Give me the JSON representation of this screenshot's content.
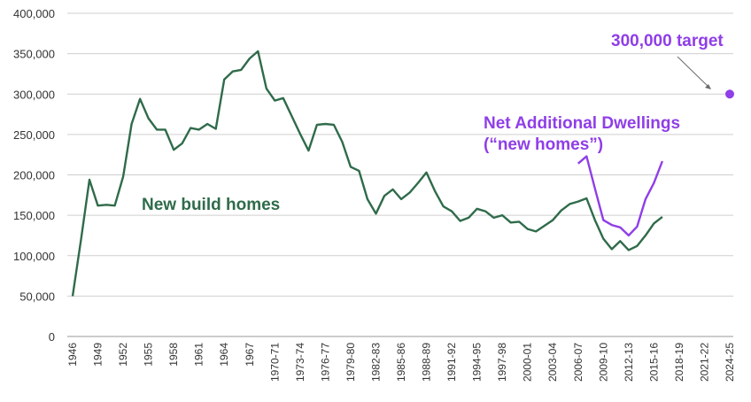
{
  "chart_data": {
    "type": "line",
    "ylim": [
      0,
      400000
    ],
    "yticks": [
      "0",
      "50,000",
      "100,000",
      "150,000",
      "200,000",
      "250,000",
      "300,000",
      "350,000",
      "400,000"
    ],
    "ytick_values": [
      0,
      50000,
      100000,
      150000,
      200000,
      250000,
      300000,
      350000,
      400000
    ],
    "xticks": [
      "1946",
      "1949",
      "1952",
      "1955",
      "1958",
      "1961",
      "1964",
      "1967",
      "1970-71",
      "1973-74",
      "1976-77",
      "1979-80",
      "1982-83",
      "1985-86",
      "1988-89",
      "1991-92",
      "1994-95",
      "1997-98",
      "2000-01",
      "2003-04",
      "2006-07",
      "2009-10",
      "2012-13",
      "2015-16",
      "2018-19",
      "2021-22",
      "2024-25"
    ],
    "grid": true,
    "series": [
      {
        "name": "New build homes",
        "color": "#2f6b4a",
        "x": [
          "1946",
          "1947",
          "1948",
          "1949",
          "1950",
          "1951",
          "1952",
          "1953",
          "1954",
          "1955",
          "1956",
          "1957",
          "1958",
          "1959",
          "1960",
          "1961",
          "1962",
          "1963",
          "1964",
          "1965",
          "1966",
          "1967",
          "1968",
          "1969-70",
          "1970-71",
          "1971-72",
          "1972-73",
          "1973-74",
          "1974-75",
          "1975-76",
          "1976-77",
          "1977-78",
          "1978-79",
          "1979-80",
          "1980-81",
          "1981-82",
          "1982-83",
          "1983-84",
          "1984-85",
          "1985-86",
          "1986-87",
          "1987-88",
          "1988-89",
          "1989-90",
          "1990-91",
          "1991-92",
          "1992-93",
          "1993-94",
          "1994-95",
          "1995-96",
          "1996-97",
          "1997-98",
          "1998-99",
          "1999-00",
          "2000-01",
          "2001-02",
          "2002-03",
          "2003-04",
          "2004-05",
          "2005-06",
          "2006-07",
          "2007-08",
          "2008-09",
          "2009-10",
          "2010-11",
          "2011-12",
          "2012-13",
          "2013-14",
          "2014-15",
          "2015-16",
          "2016-17"
        ],
        "values": [
          50000,
          120000,
          194000,
          162000,
          163000,
          162000,
          198000,
          263000,
          294000,
          270000,
          256000,
          256000,
          231000,
          239000,
          258000,
          256000,
          263000,
          257000,
          318000,
          328000,
          330000,
          344000,
          353000,
          307000,
          292000,
          295000,
          273000,
          251000,
          230000,
          262000,
          263000,
          262000,
          241000,
          210000,
          205000,
          170000,
          152000,
          174000,
          182000,
          170000,
          178000,
          190000,
          203000,
          180000,
          161000,
          155000,
          143000,
          147000,
          158000,
          155000,
          147000,
          150000,
          141000,
          142000,
          133000,
          130000,
          137000,
          144000,
          156000,
          164000,
          167000,
          171000,
          144000,
          121000,
          108000,
          118000,
          107000,
          112000,
          125000,
          140000,
          148000
        ]
      },
      {
        "name": "Net Additional Dwellings (“new homes”)",
        "color": "#8f3ee8",
        "x": [
          "2006-07",
          "2007-08",
          "2008-09",
          "2009-10",
          "2010-11",
          "2011-12",
          "2012-13",
          "2013-14",
          "2014-15",
          "2015-16",
          "2016-17"
        ],
        "values": [
          214000,
          223000,
          183000,
          144000,
          138000,
          135000,
          125000,
          136000,
          170000,
          190000,
          217000
        ]
      }
    ],
    "target": {
      "x": "2024-25",
      "value": 300000,
      "color": "#8f3ee8"
    },
    "annotations": {
      "new_build": "New build homes",
      "net_line1": "Net Additional Dwellings",
      "net_line2": "(“new homes”)",
      "target": "300,000 target"
    }
  }
}
